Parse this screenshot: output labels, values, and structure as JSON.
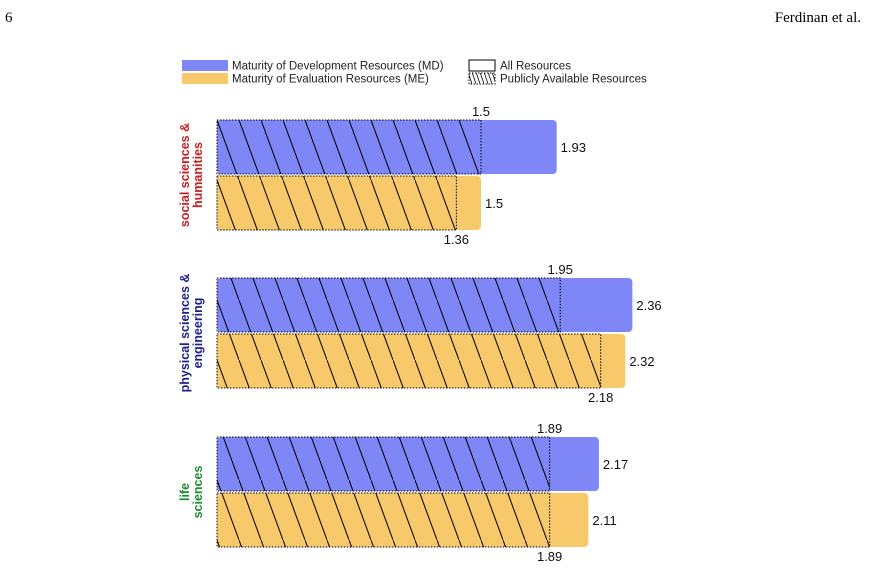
{
  "page": {
    "number": "6",
    "running_head": "Ferdinan et al."
  },
  "colors": {
    "md": "#7f87f7",
    "me": "#f8c96a",
    "outline": "#000000"
  },
  "chart_data": {
    "type": "bar",
    "orientation": "horizontal",
    "legend_position": "top",
    "legend": {
      "series": [
        {
          "key": "md",
          "label": "Maturity of Development Resources (MD)"
        },
        {
          "key": "me",
          "label": "Maturity of Evaluation Resources (ME)"
        }
      ],
      "patterns": [
        {
          "key": "all",
          "label": "All Resources"
        },
        {
          "key": "public",
          "label": "Publicly Available Resources"
        }
      ]
    },
    "xlim": [
      0,
      2.5
    ],
    "grid": false,
    "groups": [
      {
        "label_lines": [
          "social sciences &",
          "humanities"
        ],
        "label_color": "#c81e1e",
        "bars": [
          {
            "series": "md",
            "all": 1.93,
            "all_label": "1.93",
            "public": 1.5,
            "public_label": "1.5"
          },
          {
            "series": "me",
            "all": 1.5,
            "all_label": "1.5",
            "public": 1.36,
            "public_label": "1.36"
          }
        ]
      },
      {
        "label_lines": [
          "physical sciences &",
          "engineering"
        ],
        "label_color": "#1e1e8c",
        "bars": [
          {
            "series": "md",
            "all": 2.36,
            "all_label": "2.36",
            "public": 1.95,
            "public_label": "1.95"
          },
          {
            "series": "me",
            "all": 2.32,
            "all_label": "2.32",
            "public": 2.18,
            "public_label": "2.18"
          }
        ]
      },
      {
        "label_lines": [
          "life",
          "sciences"
        ],
        "label_color": "#1e8c32",
        "bars": [
          {
            "series": "md",
            "all": 2.17,
            "all_label": "2.17",
            "public": 1.89,
            "public_label": "1.89"
          },
          {
            "series": "me",
            "all": 2.11,
            "all_label": "2.11",
            "public": 1.89,
            "public_label": "1.89"
          }
        ]
      }
    ]
  }
}
